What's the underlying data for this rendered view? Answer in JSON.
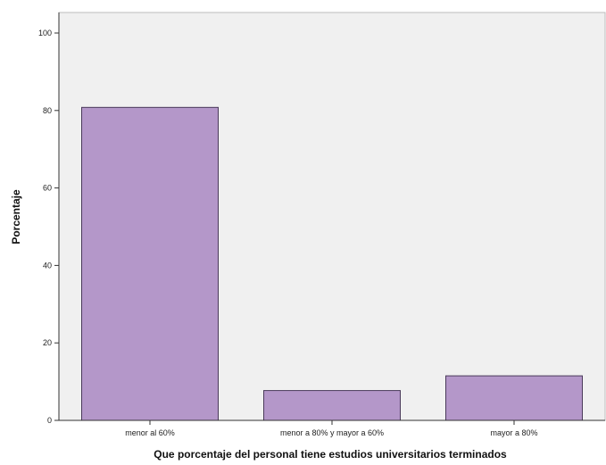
{
  "chart_data": {
    "type": "bar",
    "categories": [
      "menor al 60%",
      "menor a 80% y mayor a 60%",
      "mayor a 80%"
    ],
    "values": [
      80.8,
      7.7,
      11.5
    ],
    "title": "",
    "xlabel": "Que porcentaje del personal tiene estudios universitarios terminados",
    "ylabel": "Porcentaje",
    "ylim": [
      0,
      100
    ],
    "yticks": [
      0,
      20,
      40,
      60,
      80,
      100
    ],
    "grid": false,
    "legend": "none",
    "colors": {
      "bar_fill": "#b497c9",
      "bar_stroke": "#4a3a5a",
      "plot_background": "#f0f0f0",
      "axis": "#333333"
    }
  }
}
